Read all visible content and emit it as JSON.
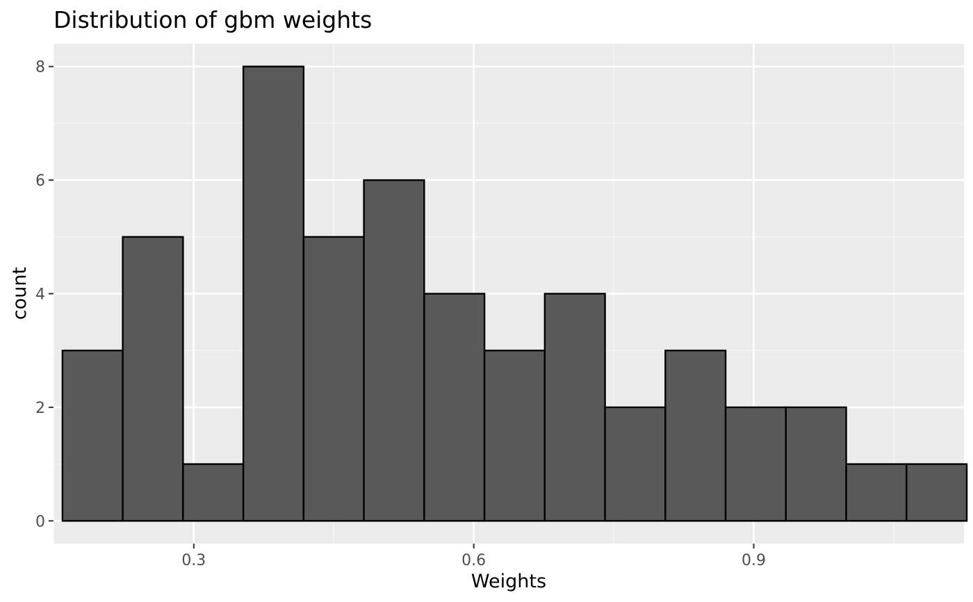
{
  "chart_data": {
    "type": "bar",
    "title": "Distribution of gbm weights",
    "xlabel": "Weights",
    "ylabel": "count",
    "xlim": [
      0.1497,
      1.1253
    ],
    "ylim": [
      -0.4,
      8.4
    ],
    "x_ticks": [
      {
        "value": 0.3,
        "label": "0.3"
      },
      {
        "value": 0.6,
        "label": "0.6"
      },
      {
        "value": 0.9,
        "label": "0.9"
      }
    ],
    "y_ticks": [
      {
        "value": 0,
        "label": "0"
      },
      {
        "value": 2,
        "label": "2"
      },
      {
        "value": 4,
        "label": "4"
      },
      {
        "value": 6,
        "label": "6"
      },
      {
        "value": 8,
        "label": "8"
      }
    ],
    "x_minor": [
      0.15,
      0.45,
      0.75,
      1.05
    ],
    "y_minor": [
      1,
      3,
      5,
      7
    ],
    "bins": [
      {
        "x0": 0.1593,
        "x1": 0.2239,
        "count": 3
      },
      {
        "x0": 0.2239,
        "x1": 0.2885,
        "count": 5
      },
      {
        "x0": 0.2885,
        "x1": 0.3531,
        "count": 1
      },
      {
        "x0": 0.3531,
        "x1": 0.4177,
        "count": 8
      },
      {
        "x0": 0.4177,
        "x1": 0.4823,
        "count": 5
      },
      {
        "x0": 0.4823,
        "x1": 0.5469,
        "count": 6
      },
      {
        "x0": 0.5469,
        "x1": 0.6115,
        "count": 4
      },
      {
        "x0": 0.6115,
        "x1": 0.6761,
        "count": 3
      },
      {
        "x0": 0.6761,
        "x1": 0.7407,
        "count": 4
      },
      {
        "x0": 0.7407,
        "x1": 0.8053,
        "count": 2
      },
      {
        "x0": 0.8053,
        "x1": 0.8699,
        "count": 3
      },
      {
        "x0": 0.8699,
        "x1": 0.9345,
        "count": 2
      },
      {
        "x0": 0.9345,
        "x1": 0.9991,
        "count": 2
      },
      {
        "x0": 0.9991,
        "x1": 1.0637,
        "count": 1
      },
      {
        "x0": 1.0637,
        "x1": 1.1283,
        "count": 1
      }
    ],
    "grid": true,
    "colors": {
      "panel_background": "#ebebeb",
      "grid_major": "#ffffff",
      "grid_minor": "#f5f5f5",
      "bar_fill": "#595959",
      "bar_outline": "#000000",
      "tick_mark": "#333333"
    }
  }
}
